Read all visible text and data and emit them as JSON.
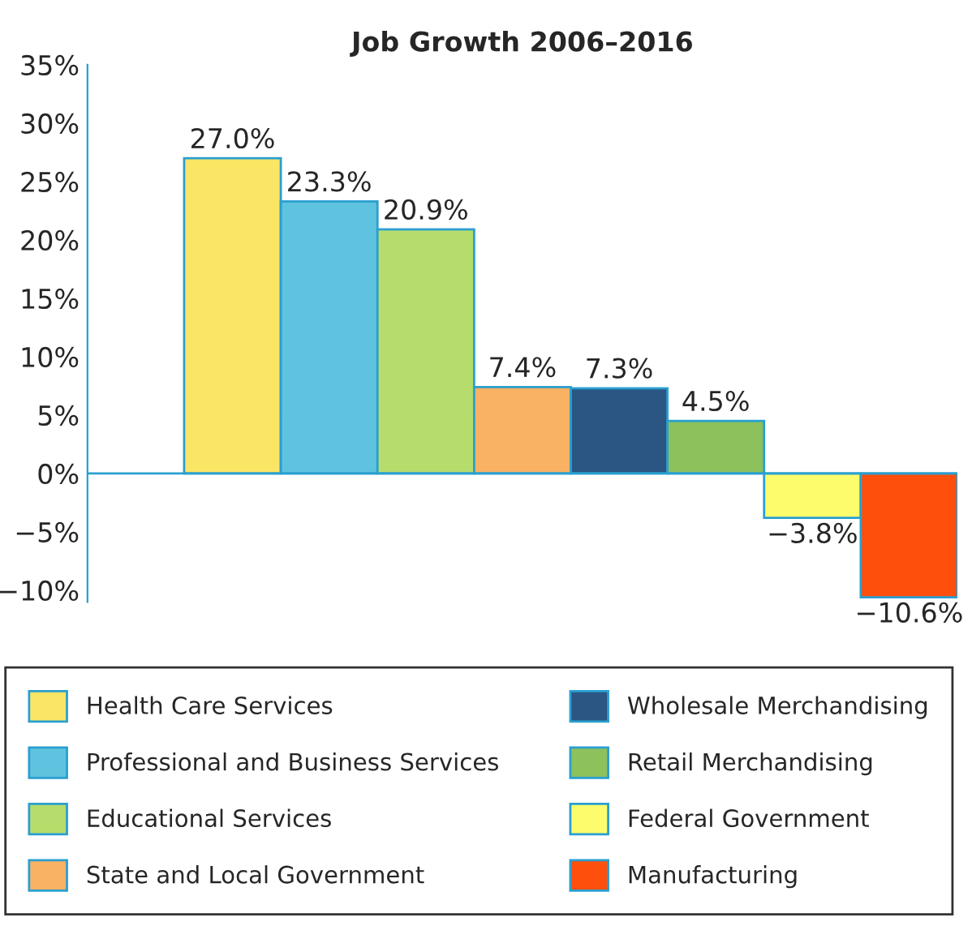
{
  "chart_data": {
    "type": "bar",
    "title": "Job Growth 2006–2016",
    "categories": [
      null,
      null,
      null,
      null,
      null,
      null,
      null,
      null,
      null
    ],
    "series": [
      {
        "name": "Health Care Services",
        "color": "#fbe565",
        "values": [
          null,
          27.0,
          null,
          null,
          null,
          null,
          null,
          null,
          null
        ],
        "value_labels": [
          null,
          "27.0%",
          null,
          null,
          null,
          null,
          null,
          null,
          null
        ]
      },
      {
        "name": "Professional and Business Services",
        "color": "#5fc3df",
        "values": [
          null,
          null,
          23.3,
          null,
          null,
          null,
          null,
          null,
          null
        ],
        "value_labels": [
          null,
          null,
          "23.3%",
          null,
          null,
          null,
          null,
          null,
          null
        ]
      },
      {
        "name": "Educational Services",
        "color": "#b6dd6c",
        "values": [
          null,
          null,
          null,
          20.9,
          null,
          null,
          null,
          null,
          null
        ],
        "value_labels": [
          null,
          null,
          null,
          "20.9%",
          null,
          null,
          null,
          null,
          null
        ]
      },
      {
        "name": "State and Local Government",
        "color": "#f9b263",
        "values": [
          null,
          null,
          null,
          null,
          7.4,
          null,
          null,
          null,
          null
        ],
        "value_labels": [
          null,
          null,
          null,
          null,
          "7.4%",
          null,
          null,
          null,
          null
        ]
      },
      {
        "name": "Wholesale Merchandising",
        "color": "#2b5583",
        "values": [
          null,
          null,
          null,
          null,
          null,
          7.3,
          null,
          null,
          null
        ],
        "value_labels": [
          null,
          null,
          null,
          null,
          null,
          "7.3%",
          null,
          null,
          null
        ]
      },
      {
        "name": "Retail Merchandising",
        "color": "#8cc15c",
        "values": [
          null,
          null,
          null,
          null,
          null,
          null,
          4.5,
          null,
          null
        ],
        "value_labels": [
          null,
          null,
          null,
          null,
          null,
          null,
          "4.5%",
          null,
          null
        ]
      },
      {
        "name": "Federal Government",
        "color": "#fcfc6c",
        "values": [
          null,
          null,
          null,
          null,
          null,
          null,
          null,
          -3.8,
          null
        ],
        "value_labels": [
          null,
          null,
          null,
          null,
          null,
          null,
          null,
          "−3.8%",
          null
        ]
      },
      {
        "name": "Manufacturing",
        "color": "#ff4f0c",
        "values": [
          null,
          null,
          null,
          null,
          null,
          null,
          null,
          null,
          -10.6
        ],
        "value_labels": [
          null,
          null,
          null,
          null,
          null,
          null,
          null,
          null,
          "−10.6%"
        ]
      }
    ],
    "ylim": [
      -11,
      35
    ],
    "yticks": [
      {
        "value": -10,
        "label": "−10%"
      },
      {
        "value": -5,
        "label": "−5%"
      },
      {
        "value": 0,
        "label": "0%"
      },
      {
        "value": 5,
        "label": "5%"
      },
      {
        "value": 10,
        "label": "10%"
      },
      {
        "value": 15,
        "label": "15%"
      },
      {
        "value": 20,
        "label": "20%"
      },
      {
        "value": 25,
        "label": "25%"
      },
      {
        "value": 30,
        "label": "30%"
      },
      {
        "value": 35,
        "label": "35%"
      }
    ],
    "ref_lines": [
      {
        "axis": "y",
        "value": 0,
        "color": "#2a9fd0"
      }
    ],
    "stacked": true,
    "tick_labels": "y",
    "legend": "bottom",
    "grid": false
  }
}
